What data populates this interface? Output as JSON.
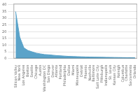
{
  "chart_data": {
    "type": "area",
    "categories": [
      "Silicon Valley",
      "New York",
      "Los Angeles",
      "Boston",
      "Seattle",
      "Chicago",
      "Austin",
      "Washington DC",
      "San Diego",
      "Denver",
      "Atlanta",
      "Portland",
      "Philadelphia",
      "Dallas",
      "Miami",
      "Minneapolis",
      "Detroit",
      "Phoenix",
      "Nashville",
      "Baltimore",
      "Salt Lake City",
      "Pittsburgh",
      "Indianapolis",
      "St. Louis",
      "Kansas City",
      "Raleigh",
      "Columbus",
      "Charlotte",
      "Sacramento",
      "Orlando"
    ],
    "values": [
      35,
      16,
      8,
      6,
      5,
      4,
      3.5,
      3,
      2.8,
      2.5,
      2.2,
      2.0,
      1.8,
      1.6,
      1.5,
      1.4,
      1.3,
      1.2,
      1.1,
      1.05,
      1.0,
      0.95,
      0.9,
      0.85,
      0.8,
      0.75,
      0.7,
      0.65,
      0.6,
      0.55
    ],
    "color": "#5ba3c9",
    "ylim": [
      0,
      41
    ],
    "yticks": [
      0,
      5,
      10,
      15,
      20,
      25,
      30,
      35,
      40
    ],
    "grid": true
  }
}
